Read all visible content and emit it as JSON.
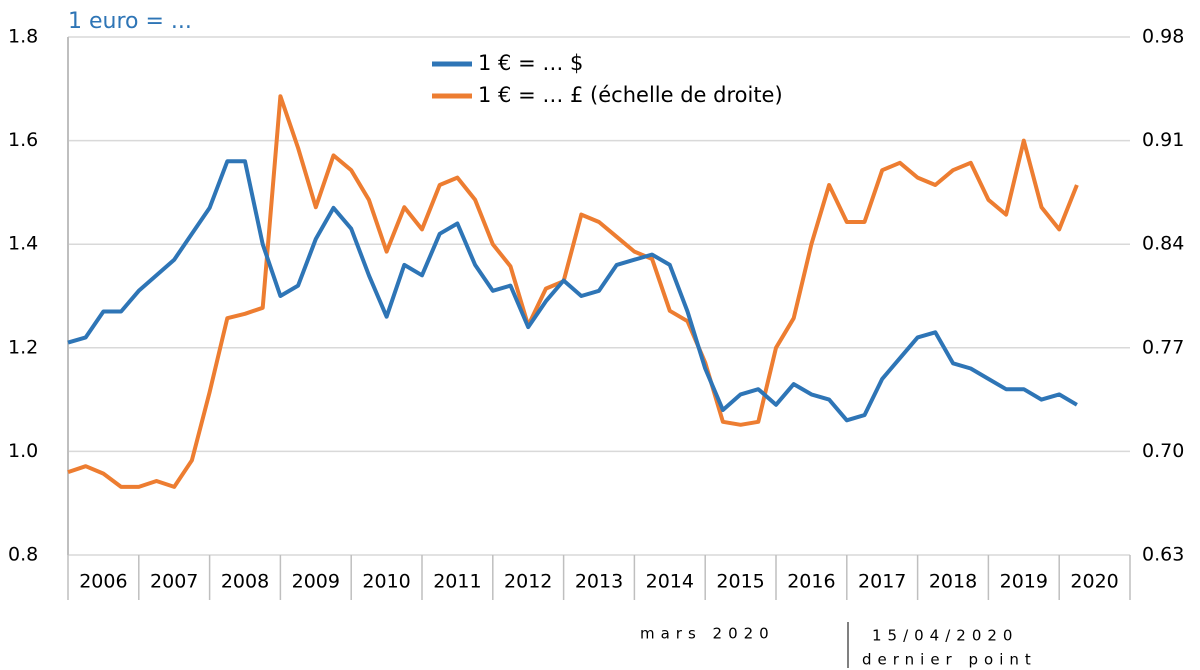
{
  "chart_data": {
    "type": "line",
    "title": "1 euro = ...",
    "categories": [
      "2006",
      "2007",
      "2008",
      "2009",
      "2010",
      "2011",
      "2012",
      "2013",
      "2014",
      "2015",
      "2016",
      "2017",
      "2018",
      "2019",
      "2020"
    ],
    "xlim": [
      2006,
      2021
    ],
    "xticks": [
      2006,
      2007,
      2008,
      2009,
      2010,
      2011,
      2012,
      2013,
      2014,
      2015,
      2016,
      2017,
      2018,
      2019,
      2020,
      2021
    ],
    "x": [
      2006,
      2006.25,
      2006.5,
      2006.75,
      2007,
      2007.25,
      2007.5,
      2007.75,
      2008,
      2008.25,
      2008.5,
      2008.75,
      2009,
      2009.25,
      2009.5,
      2009.75,
      2010,
      2010.25,
      2010.5,
      2010.75,
      2011,
      2011.25,
      2011.5,
      2011.75,
      2012,
      2012.25,
      2012.5,
      2012.75,
      2013,
      2013.25,
      2013.5,
      2013.75,
      2014,
      2014.25,
      2014.5,
      2014.75,
      2015,
      2015.25,
      2015.5,
      2015.75,
      2016,
      2016.25,
      2016.5,
      2016.75,
      2017,
      2017.25,
      2017.5,
      2017.75,
      2018,
      2018.25,
      2018.5,
      2018.75,
      2019,
      2019.25,
      2019.5,
      2019.75,
      2020,
      2020.25
    ],
    "ylim": [
      0.8,
      1.8
    ],
    "yticks": [
      {
        "value": 0.8,
        "label": "0.8"
      },
      {
        "value": 1.0,
        "label": "1.0"
      },
      1.2,
      1.4,
      1.6,
      1.8
    ],
    "y2lim": [
      0.63,
      0.98
    ],
    "y2ticks": [
      0.63,
      {
        "value": 0.7,
        "label": "0.70"
      },
      0.77,
      0.84,
      0.91,
      0.98
    ],
    "grid": true,
    "series": [
      {
        "name": "1 € = … $",
        "color": "#2e75b6",
        "values": [
          1.21,
          1.22,
          1.27,
          1.27,
          1.31,
          1.34,
          1.37,
          1.42,
          1.47,
          1.56,
          1.56,
          1.4,
          1.3,
          1.32,
          1.41,
          1.47,
          1.43,
          1.34,
          1.26,
          1.36,
          1.34,
          1.42,
          1.44,
          1.36,
          1.31,
          1.32,
          1.24,
          1.29,
          1.33,
          1.3,
          1.31,
          1.36,
          1.37,
          1.38,
          1.36,
          1.27,
          1.16,
          1.08,
          1.11,
          1.12,
          1.09,
          1.13,
          1.11,
          1.1,
          1.06,
          1.07,
          1.14,
          1.18,
          1.22,
          1.23,
          1.17,
          1.16,
          1.14,
          1.12,
          1.12,
          1.1,
          1.11,
          1.09
        ]
      },
      {
        "name": "1 € = … £ (échelle de droite)",
        "color": "#ed7d31",
        "axis": "y2",
        "values": [
          0.686,
          0.69,
          0.685,
          0.676,
          0.676,
          0.68,
          0.676,
          0.694,
          0.74,
          0.79,
          0.793,
          0.797,
          0.94,
          0.905,
          0.865,
          0.9,
          0.89,
          0.87,
          0.835,
          0.865,
          0.85,
          0.88,
          0.885,
          0.87,
          0.84,
          0.825,
          0.785,
          0.81,
          0.815,
          0.86,
          0.855,
          0.845,
          0.835,
          0.83,
          0.795,
          0.788,
          0.76,
          0.72,
          0.718,
          0.72,
          0.77,
          0.79,
          0.84,
          0.88,
          0.855,
          0.855,
          0.89,
          0.895,
          0.885,
          0.88,
          0.89,
          0.895,
          0.87,
          0.86,
          0.91,
          0.865,
          0.85,
          0.88
        ]
      }
    ]
  },
  "footer": {
    "left": "mars 2020",
    "right_date": "15/04/2020",
    "right_note": "dernier point"
  }
}
